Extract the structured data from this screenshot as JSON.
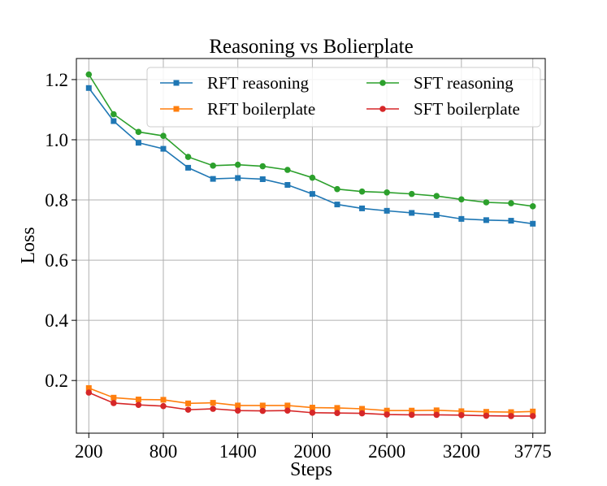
{
  "chart_data": {
    "type": "line",
    "title": "Reasoning vs Bolierplate",
    "xlabel": "Steps",
    "ylabel": "Loss",
    "xlim": [
      100,
      3875
    ],
    "ylim": [
      0.025,
      1.27
    ],
    "x_ticks": [
      200,
      800,
      1400,
      2000,
      2600,
      3200,
      3775
    ],
    "x_tick_labels": [
      "200",
      "800",
      "1400",
      "2000",
      "2600",
      "3200",
      "3775"
    ],
    "y_ticks": [
      0.2,
      0.4,
      0.6,
      0.8,
      1.0,
      1.2
    ],
    "y_tick_labels": [
      "0.2",
      "0.4",
      "0.6",
      "0.8",
      "1.0",
      "1.2"
    ],
    "grid": true,
    "legend_position": "top-right",
    "x": [
      200,
      400,
      600,
      800,
      1000,
      1200,
      1400,
      1600,
      1800,
      2000,
      2200,
      2400,
      2600,
      2800,
      3000,
      3200,
      3400,
      3600,
      3775
    ],
    "series": [
      {
        "name": "RFT reasoning",
        "color": "#1f77b4",
        "marker": "square",
        "values": [
          1.172,
          1.062,
          0.99,
          0.97,
          0.907,
          0.87,
          0.873,
          0.869,
          0.85,
          0.82,
          0.785,
          0.772,
          0.764,
          0.757,
          0.75,
          0.737,
          0.733,
          0.731,
          0.721
        ]
      },
      {
        "name": "RFT boilerplate",
        "color": "#ff7f0e",
        "marker": "square",
        "values": [
          0.175,
          0.143,
          0.137,
          0.136,
          0.124,
          0.126,
          0.117,
          0.117,
          0.117,
          0.11,
          0.109,
          0.106,
          0.1,
          0.1,
          0.101,
          0.098,
          0.096,
          0.095,
          0.097
        ]
      },
      {
        "name": "SFT reasoning",
        "color": "#2ca02c",
        "marker": "circle",
        "values": [
          1.217,
          1.085,
          1.026,
          1.013,
          0.943,
          0.914,
          0.917,
          0.912,
          0.9,
          0.874,
          0.836,
          0.828,
          0.825,
          0.82,
          0.813,
          0.802,
          0.792,
          0.789,
          0.779
        ]
      },
      {
        "name": "SFT boilerplate",
        "color": "#d62728",
        "marker": "circle",
        "values": [
          0.16,
          0.125,
          0.119,
          0.115,
          0.103,
          0.106,
          0.1,
          0.099,
          0.1,
          0.093,
          0.092,
          0.091,
          0.087,
          0.086,
          0.086,
          0.085,
          0.083,
          0.082,
          0.082
        ]
      }
    ]
  }
}
